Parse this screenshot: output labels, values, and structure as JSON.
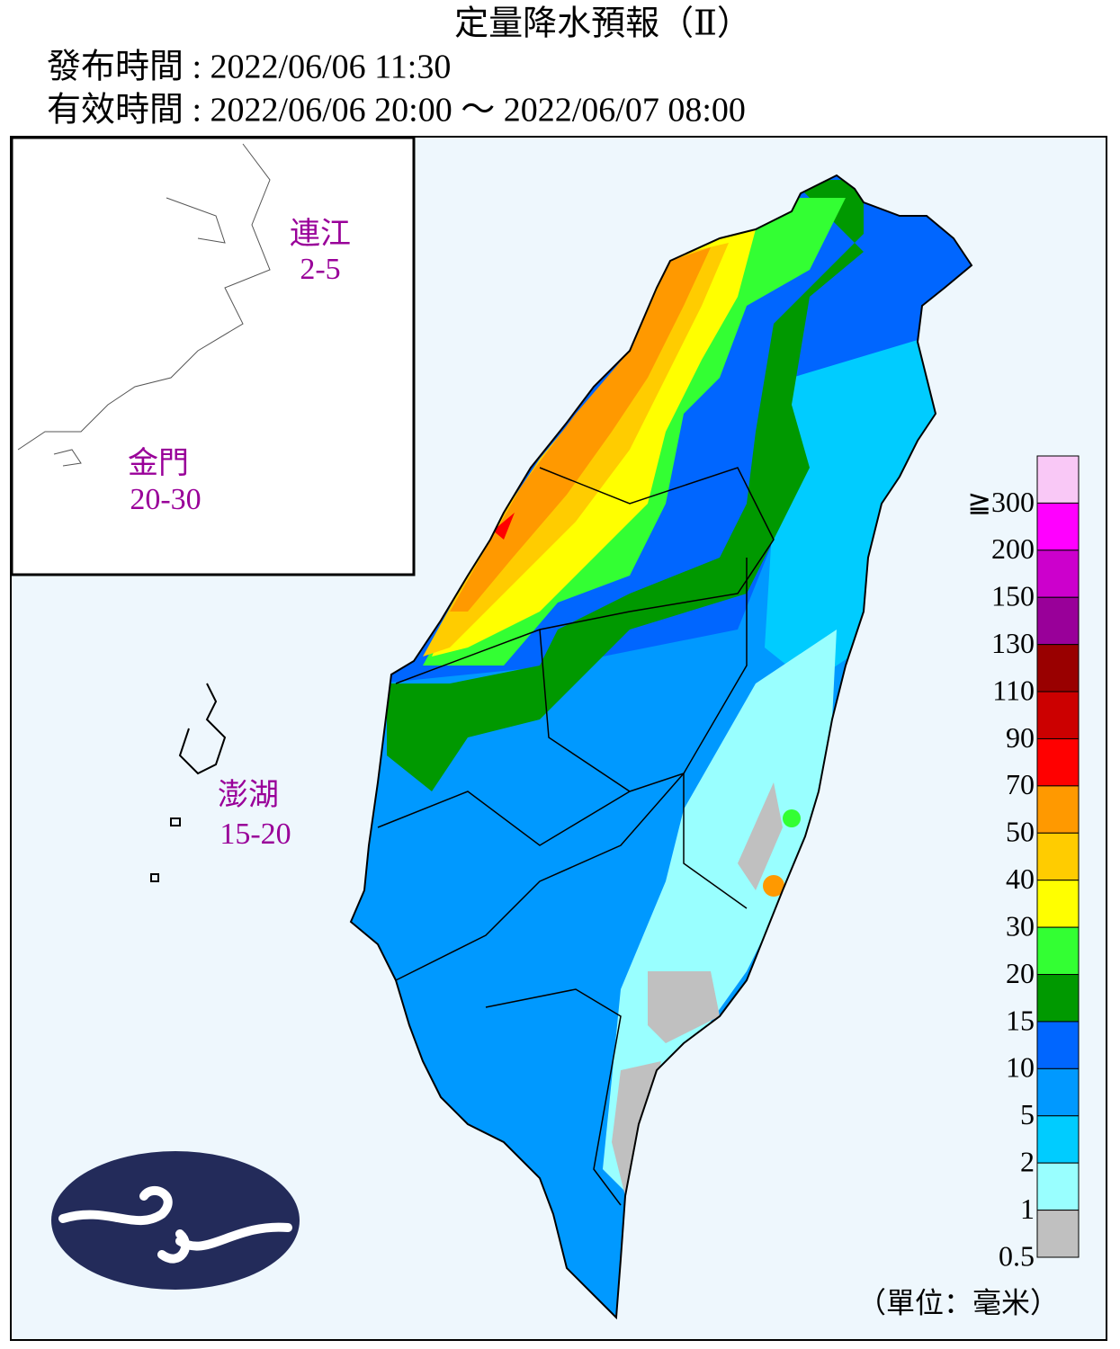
{
  "header": {
    "title": "定量降水預報（Ⅱ）",
    "issued": "發布時間 : 2022/06/06 11:30",
    "valid": "有效時間 : 2022/06/06 20:00 ～ 2022/06/07 08:00"
  },
  "regions": [
    {
      "name": "連江",
      "range": "2-5"
    },
    {
      "name": "金門",
      "range": "20-30"
    },
    {
      "name": "澎湖",
      "range": "15-20"
    }
  ],
  "legend": {
    "labels": [
      "≧300",
      "200",
      "150",
      "130",
      "110",
      "90",
      "70",
      "50",
      "40",
      "30",
      "20",
      "15",
      "10",
      "5",
      "2",
      "1",
      "0.5"
    ],
    "colors": [
      "#f9c8f6",
      "#ff00ff",
      "#cc00cc",
      "#990099",
      "#990000",
      "#cc0000",
      "#ff0000",
      "#ff9900",
      "#ffcc00",
      "#ffff00",
      "#33ff33",
      "#009900",
      "#0066ff",
      "#0099ff",
      "#00ccff",
      "#99ffff",
      "#c0c0c0"
    ]
  },
  "unit": "（單位：毫米）"
}
